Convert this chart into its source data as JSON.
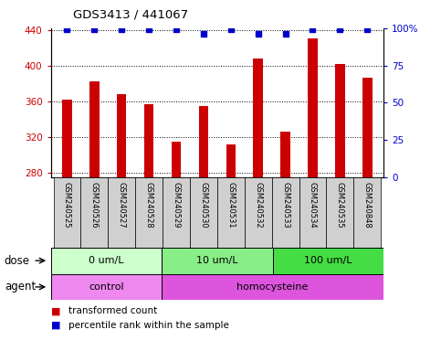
{
  "title": "GDS3413 / 441067",
  "samples": [
    "GSM240525",
    "GSM240526",
    "GSM240527",
    "GSM240528",
    "GSM240529",
    "GSM240530",
    "GSM240531",
    "GSM240532",
    "GSM240533",
    "GSM240534",
    "GSM240535",
    "GSM240848"
  ],
  "bar_values": [
    362,
    382,
    368,
    357,
    315,
    355,
    312,
    408,
    326,
    430,
    402,
    386
  ],
  "percentile_values": [
    99,
    99,
    99,
    99,
    99,
    96,
    99,
    96,
    96,
    99,
    99,
    99
  ],
  "bar_color": "#cc0000",
  "dot_color": "#0000cc",
  "ylim_left": [
    275,
    442
  ],
  "ylim_right": [
    0,
    100
  ],
  "yticks_left": [
    280,
    320,
    360,
    400,
    440
  ],
  "yticks_right": [
    0,
    25,
    50,
    75,
    100
  ],
  "dose_groups": [
    {
      "label": "0 um/L",
      "start": 0,
      "end": 4,
      "color": "#ccffcc"
    },
    {
      "label": "10 um/L",
      "start": 4,
      "end": 8,
      "color": "#88ee88"
    },
    {
      "label": "100 um/L",
      "start": 8,
      "end": 12,
      "color": "#44dd44"
    }
  ],
  "agent_groups": [
    {
      "label": "control",
      "start": 0,
      "end": 4,
      "color": "#ee88ee"
    },
    {
      "label": "homocysteine",
      "start": 4,
      "end": 12,
      "color": "#dd55dd"
    }
  ],
  "dose_label": "dose",
  "agent_label": "agent",
  "legend_bar_label": "transformed count",
  "legend_dot_label": "percentile rank within the sample",
  "bar_color_hex": "#cc0000",
  "dot_color_hex": "#0000cc",
  "tick_color_left": "#cc0000",
  "tick_color_right": "#0000cc",
  "sample_bg_color": "#d0d0d0",
  "fig_width": 4.83,
  "fig_height": 3.84,
  "dpi": 100
}
